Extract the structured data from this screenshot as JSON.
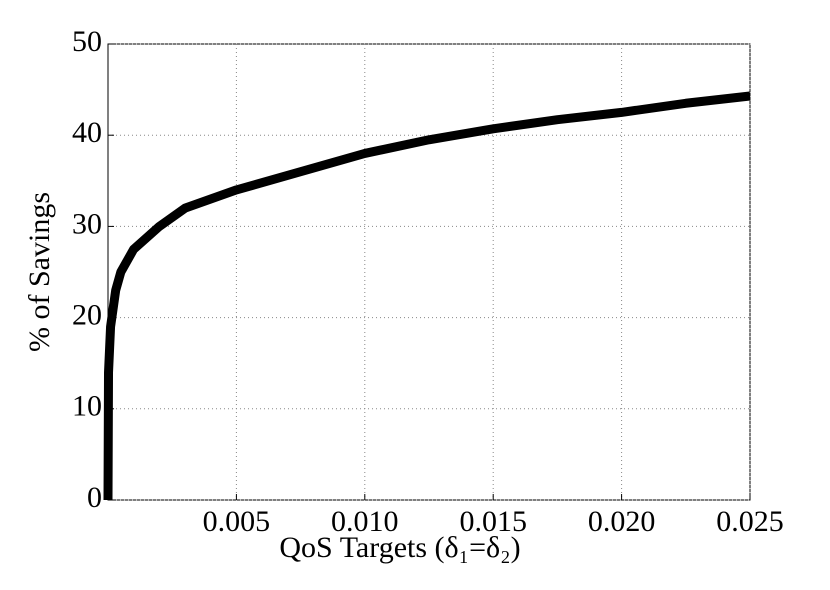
{
  "chart_data": {
    "type": "line",
    "xlabel": "QoS Targets (δ₁=δ₂)",
    "ylabel": "% of Savings",
    "x": [
      0,
      2e-05,
      0.0001,
      0.0003,
      0.0005,
      0.001,
      0.002,
      0.003,
      0.004,
      0.005,
      0.0075,
      0.01,
      0.0125,
      0.015,
      0.0175,
      0.02,
      0.0225,
      0.025
    ],
    "values": [
      0,
      14,
      19,
      23,
      25,
      27.5,
      30,
      32,
      33,
      34,
      36,
      38,
      39.5,
      40.7,
      41.7,
      42.5,
      43.5,
      44.3
    ],
    "color": "#000000",
    "xlim": [
      0,
      0.025
    ],
    "xticks": [
      0.005,
      {
        "value": 0.01,
        "label": "0.010"
      },
      0.015,
      {
        "value": 0.02,
        "label": "0.020"
      },
      0.025
    ],
    "ylim": [
      0,
      50
    ],
    "yticks": [
      0,
      10,
      20,
      30,
      40,
      50
    ],
    "grid": true
  }
}
